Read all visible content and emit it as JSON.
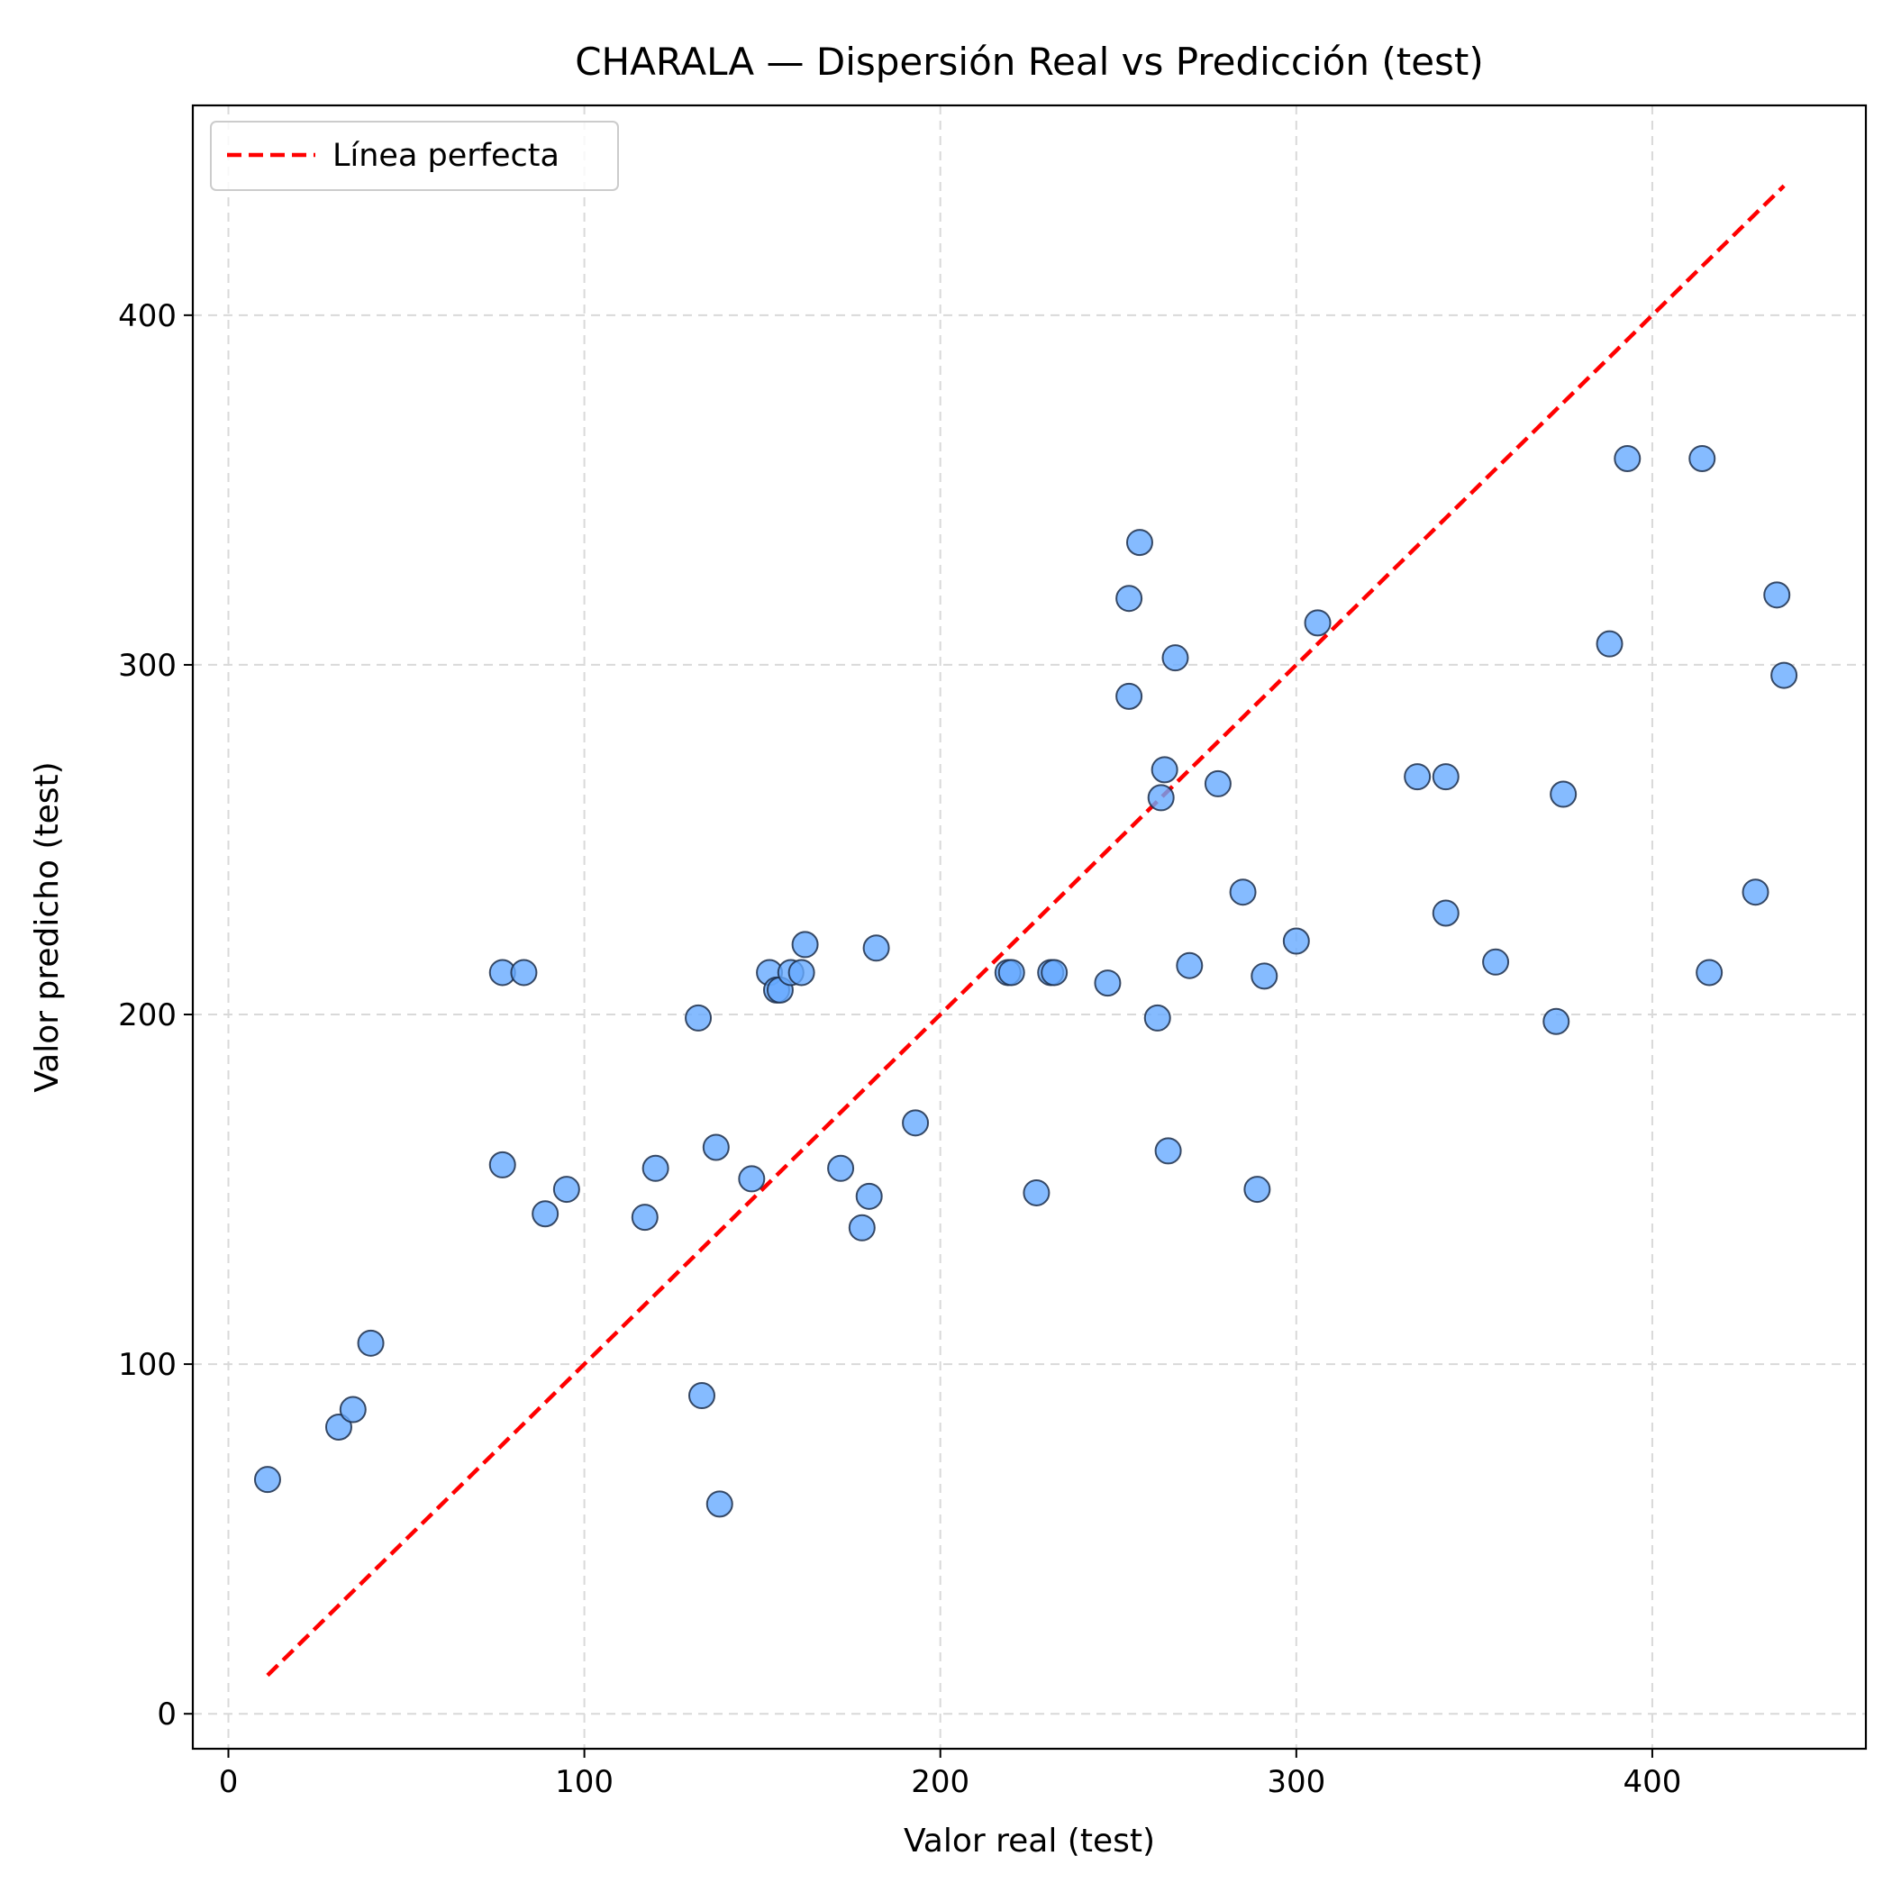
{
  "chart_data": {
    "type": "scatter",
    "title": "CHARALA — Dispersión Real vs Predicción (test)",
    "xlabel": "Valor real (test)",
    "ylabel": "Valor predicho (test)",
    "xlim": [
      -10,
      460
    ],
    "ylim": [
      -10,
      460
    ],
    "xticks": [
      0,
      100,
      200,
      300,
      400
    ],
    "yticks": [
      0,
      100,
      200,
      300,
      400
    ],
    "xtick_labels": [
      "0",
      "100",
      "200",
      "300",
      "400"
    ],
    "ytick_labels": [
      "0",
      "100",
      "200",
      "300",
      "400"
    ],
    "grid": true,
    "legend": {
      "position": "top-left",
      "entries": [
        {
          "label": "Línea perfecta",
          "style": "dashed",
          "color": "#ff0000"
        }
      ]
    },
    "reference_line": {
      "name": "Línea perfecta",
      "x": [
        11,
        437
      ],
      "y": [
        11,
        437
      ],
      "color": "#ff0000"
    },
    "series": [
      {
        "point_color": "#66aaff",
        "edge_color": "#1c2e4a",
        "points": [
          [
            11,
            67
          ],
          [
            31,
            82
          ],
          [
            35,
            87
          ],
          [
            40,
            106
          ],
          [
            77,
            157
          ],
          [
            77,
            212
          ],
          [
            83,
            212
          ],
          [
            89,
            143
          ],
          [
            95,
            150
          ],
          [
            117,
            142
          ],
          [
            120,
            156
          ],
          [
            132,
            199
          ],
          [
            133,
            91
          ],
          [
            137,
            162
          ],
          [
            138,
            60
          ],
          [
            147,
            153
          ],
          [
            152,
            212
          ],
          [
            154,
            207
          ],
          [
            155,
            207
          ],
          [
            158,
            212
          ],
          [
            161,
            212
          ],
          [
            162,
            220
          ],
          [
            172,
            156
          ],
          [
            178,
            139
          ],
          [
            180,
            148
          ],
          [
            182,
            219
          ],
          [
            193,
            169
          ],
          [
            219,
            212
          ],
          [
            220,
            212
          ],
          [
            227,
            149
          ],
          [
            231,
            212
          ],
          [
            232,
            212
          ],
          [
            247,
            209
          ],
          [
            253,
            319
          ],
          [
            253,
            291
          ],
          [
            256,
            335
          ],
          [
            261,
            199
          ],
          [
            262,
            262
          ],
          [
            263,
            270
          ],
          [
            264,
            161
          ],
          [
            266,
            302
          ],
          [
            270,
            214
          ],
          [
            278,
            266
          ],
          [
            285,
            235
          ],
          [
            289,
            150
          ],
          [
            291,
            211
          ],
          [
            300,
            221
          ],
          [
            306,
            312
          ],
          [
            334,
            268
          ],
          [
            342,
            268
          ],
          [
            342,
            229
          ],
          [
            356,
            215
          ],
          [
            373,
            198
          ],
          [
            375,
            263
          ],
          [
            388,
            306
          ],
          [
            393,
            359
          ],
          [
            414,
            359
          ],
          [
            416,
            212
          ],
          [
            429,
            235
          ],
          [
            435,
            320
          ],
          [
            437,
            297
          ]
        ]
      }
    ]
  }
}
